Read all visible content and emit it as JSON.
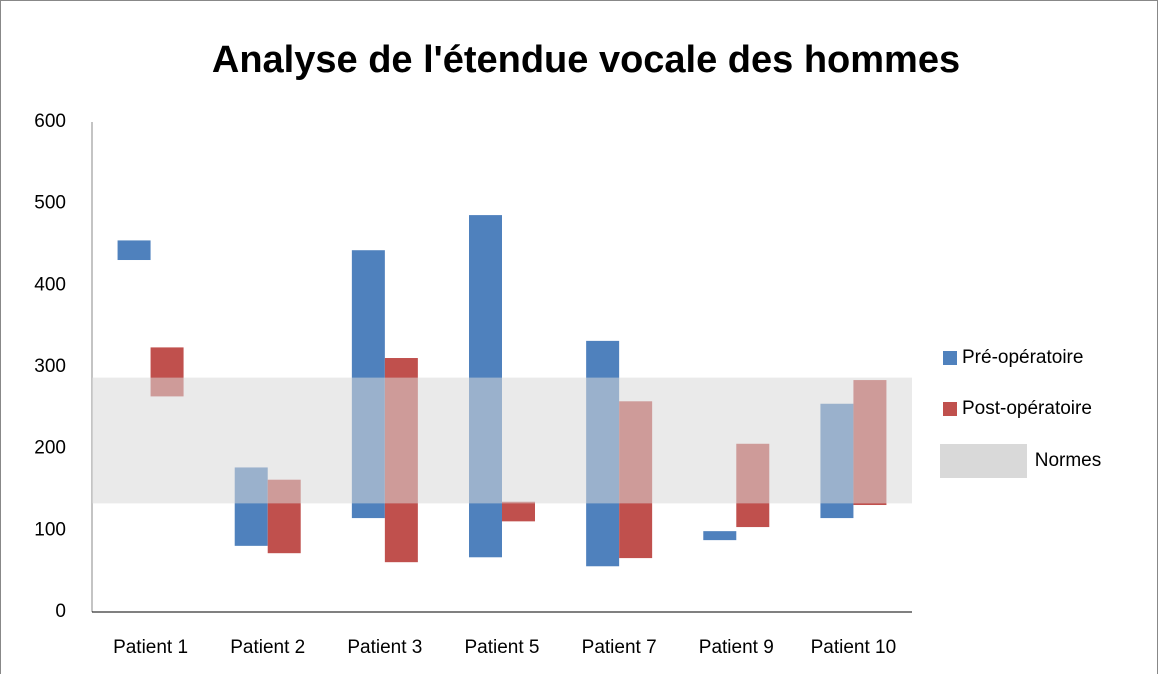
{
  "chart_data": {
    "type": "floating-bar",
    "title": "Analyse de l'étendue vocale des hommes",
    "categories": [
      "Patient 1",
      "Patient 2",
      "Patient 3",
      "Patient 5",
      "Patient 7",
      "Patient 9",
      "Patient 10"
    ],
    "series": [
      {
        "name": "Pré-opératoire",
        "color": "#4f81bd",
        "low": [
          431,
          81,
          115,
          67,
          56,
          88,
          115
        ],
        "high": [
          455,
          177,
          443,
          486,
          332,
          99,
          255
        ]
      },
      {
        "name": "Post-opératoire",
        "color": "#c0504d",
        "low": [
          264,
          72,
          61,
          111,
          66,
          104,
          131
        ],
        "high": [
          324,
          162,
          311,
          135,
          258,
          206,
          284
        ]
      }
    ],
    "band": {
      "name": "Normes",
      "low": 133,
      "high": 287,
      "color": "#d9d9d9"
    },
    "ylim": [
      0,
      600
    ],
    "yticks": [
      0,
      100,
      200,
      300,
      400,
      500,
      600
    ],
    "grid": false,
    "legend": "right"
  }
}
